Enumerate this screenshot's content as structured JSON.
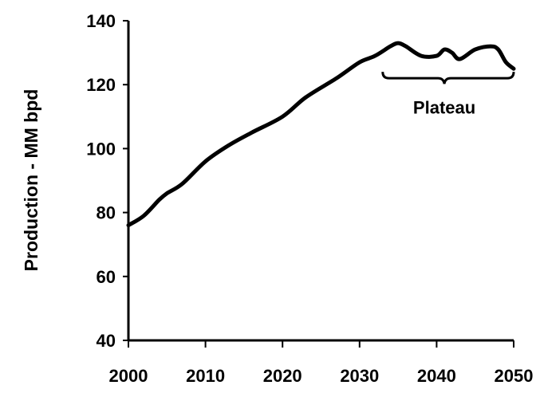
{
  "chart_data": {
    "type": "line",
    "title": "",
    "xlabel": "",
    "ylabel": "Production - MM bpd",
    "xlim": [
      2000,
      2050
    ],
    "ylim": [
      40,
      140
    ],
    "xticks": [
      2000,
      2010,
      2020,
      2030,
      2040,
      2050
    ],
    "yticks": [
      40,
      60,
      80,
      100,
      120,
      140
    ],
    "grid": false,
    "legend": "none",
    "series": [
      {
        "color": "#000000",
        "x": [
          2000,
          2002,
          2004,
          2005,
          2007,
          2010,
          2013,
          2016,
          2020,
          2023,
          2027,
          2030,
          2032,
          2034,
          2035,
          2036,
          2038,
          2040,
          2041,
          2042,
          2043,
          2045,
          2047,
          2048,
          2049,
          2050
        ],
        "y": [
          76,
          79,
          84,
          86,
          89,
          96,
          101,
          105,
          110,
          116,
          122,
          127,
          129,
          132,
          133,
          132,
          129,
          129,
          131,
          130,
          128,
          131,
          132,
          131,
          127,
          125
        ]
      }
    ],
    "annotations": [
      {
        "text": "Plateau",
        "x": 2041,
        "y": 113,
        "bracket_from": 2033,
        "bracket_to": 2050,
        "bracket_y": 122
      }
    ]
  }
}
